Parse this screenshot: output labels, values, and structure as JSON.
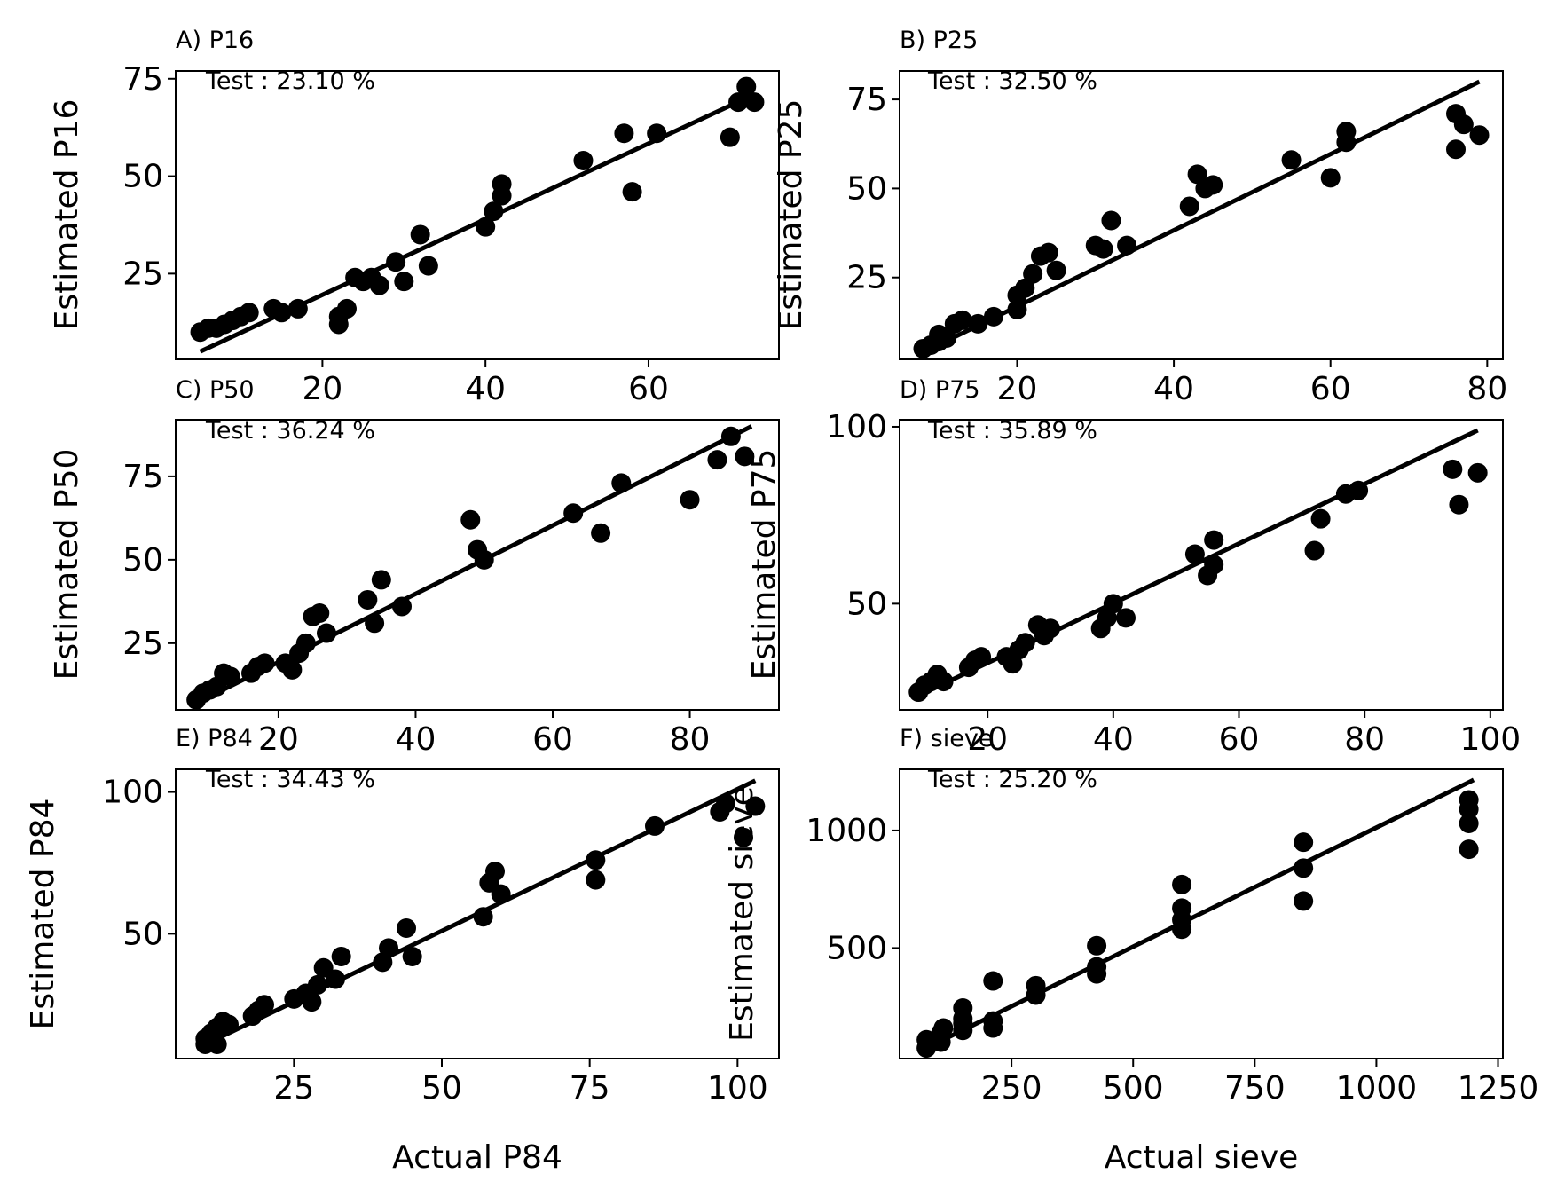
{
  "chart_data": [
    {
      "type": "scatter",
      "title": "A) P16",
      "annotation": "Test : 23.10 %",
      "xlabel": "",
      "ylabel": "Estimated P16",
      "xlim": [
        2,
        76
      ],
      "ylim": [
        3,
        77
      ],
      "xticks": [
        20,
        40,
        60
      ],
      "yticks": [
        25,
        50,
        75
      ],
      "grid": false,
      "fit_line": {
        "x": [
          5,
          73
        ],
        "y": [
          5,
          71
        ]
      },
      "points": [
        [
          5,
          10
        ],
        [
          6,
          11
        ],
        [
          7,
          11
        ],
        [
          8,
          12
        ],
        [
          9,
          13
        ],
        [
          10,
          14
        ],
        [
          11,
          15
        ],
        [
          14,
          16
        ],
        [
          15,
          15
        ],
        [
          17,
          16
        ],
        [
          22,
          14
        ],
        [
          22,
          12
        ],
        [
          23,
          16
        ],
        [
          24,
          24
        ],
        [
          25,
          23
        ],
        [
          26,
          24
        ],
        [
          27,
          22
        ],
        [
          29,
          28
        ],
        [
          30,
          23
        ],
        [
          32,
          35
        ],
        [
          33,
          27
        ],
        [
          40,
          37
        ],
        [
          41,
          41
        ],
        [
          42,
          45
        ],
        [
          42,
          48
        ],
        [
          52,
          54
        ],
        [
          57,
          61
        ],
        [
          58,
          46
        ],
        [
          61,
          61
        ],
        [
          70,
          60
        ],
        [
          71,
          69
        ],
        [
          72,
          73
        ],
        [
          73,
          69
        ]
      ]
    },
    {
      "type": "scatter",
      "title": "B) P25",
      "annotation": "Test : 32.50 %",
      "xlabel": "",
      "ylabel": "Estimated P25",
      "xlim": [
        5,
        82
      ],
      "ylim": [
        2,
        83
      ],
      "xticks": [
        20,
        40,
        60,
        80
      ],
      "yticks": [
        25,
        50,
        75
      ],
      "grid": false,
      "fit_line": {
        "x": [
          8,
          79
        ],
        "y": [
          4,
          80
        ]
      },
      "points": [
        [
          8,
          5
        ],
        [
          9,
          6
        ],
        [
          10,
          7
        ],
        [
          10,
          9
        ],
        [
          11,
          8
        ],
        [
          12,
          12
        ],
        [
          13,
          13
        ],
        [
          15,
          12
        ],
        [
          17,
          14
        ],
        [
          20,
          16
        ],
        [
          20,
          20
        ],
        [
          21,
          22
        ],
        [
          22,
          26
        ],
        [
          23,
          31
        ],
        [
          24,
          32
        ],
        [
          25,
          27
        ],
        [
          30,
          34
        ],
        [
          31,
          33
        ],
        [
          32,
          41
        ],
        [
          34,
          34
        ],
        [
          42,
          45
        ],
        [
          43,
          54
        ],
        [
          44,
          50
        ],
        [
          45,
          51
        ],
        [
          55,
          58
        ],
        [
          60,
          53
        ],
        [
          62,
          63
        ],
        [
          62,
          66
        ],
        [
          76,
          71
        ],
        [
          76,
          61
        ],
        [
          77,
          68
        ],
        [
          79,
          65
        ]
      ]
    },
    {
      "type": "scatter",
      "title": "C) P50",
      "annotation": "Test : 36.24 %",
      "xlabel": "",
      "ylabel": "Estimated P50",
      "xlim": [
        5,
        93
      ],
      "ylim": [
        5,
        92
      ],
      "xticks": [
        20,
        40,
        60,
        80
      ],
      "yticks": [
        25,
        50,
        75
      ],
      "grid": false,
      "fit_line": {
        "x": [
          8,
          89
        ],
        "y": [
          7,
          90
        ]
      },
      "points": [
        [
          8,
          8
        ],
        [
          9,
          10
        ],
        [
          10,
          11
        ],
        [
          11,
          12
        ],
        [
          12,
          16
        ],
        [
          13,
          15
        ],
        [
          16,
          16
        ],
        [
          17,
          18
        ],
        [
          18,
          19
        ],
        [
          21,
          19
        ],
        [
          22,
          17
        ],
        [
          23,
          22
        ],
        [
          24,
          25
        ],
        [
          25,
          33
        ],
        [
          26,
          34
        ],
        [
          27,
          28
        ],
        [
          33,
          38
        ],
        [
          34,
          31
        ],
        [
          35,
          44
        ],
        [
          38,
          36
        ],
        [
          48,
          62
        ],
        [
          49,
          53
        ],
        [
          50,
          50
        ],
        [
          63,
          64
        ],
        [
          67,
          58
        ],
        [
          70,
          73
        ],
        [
          80,
          68
        ],
        [
          84,
          80
        ],
        [
          86,
          87
        ],
        [
          88,
          81
        ]
      ]
    },
    {
      "type": "scatter",
      "title": "D) P75",
      "annotation": "Test : 35.89 %",
      "xlabel": "",
      "ylabel": "Estimated P75",
      "xlim": [
        6,
        102
      ],
      "ylim": [
        20,
        102
      ],
      "xticks": [
        20,
        40,
        60,
        80,
        100
      ],
      "yticks": [
        50,
        100
      ],
      "grid": false,
      "fit_line": {
        "x": [
          9,
          98
        ],
        "y": [
          24,
          99
        ]
      },
      "points": [
        [
          9,
          25
        ],
        [
          10,
          27
        ],
        [
          11,
          28
        ],
        [
          12,
          30
        ],
        [
          13,
          28
        ],
        [
          17,
          32
        ],
        [
          18,
          34
        ],
        [
          19,
          35
        ],
        [
          23,
          35
        ],
        [
          24,
          33
        ],
        [
          25,
          37
        ],
        [
          26,
          39
        ],
        [
          28,
          44
        ],
        [
          29,
          41
        ],
        [
          30,
          43
        ],
        [
          38,
          43
        ],
        [
          39,
          46
        ],
        [
          40,
          50
        ],
        [
          42,
          46
        ],
        [
          53,
          64
        ],
        [
          55,
          58
        ],
        [
          56,
          61
        ],
        [
          56,
          68
        ],
        [
          72,
          65
        ],
        [
          73,
          74
        ],
        [
          77,
          81
        ],
        [
          79,
          82
        ],
        [
          94,
          88
        ],
        [
          95,
          78
        ],
        [
          98,
          87
        ]
      ]
    },
    {
      "type": "scatter",
      "title": "E) P84",
      "annotation": "Test : 34.43 %",
      "xlabel": "Actual P84",
      "ylabel": "Estimated P84",
      "xlim": [
        5,
        107
      ],
      "ylim": [
        6,
        108
      ],
      "xticks": [
        25,
        50,
        75,
        100
      ],
      "yticks": [
        50,
        100
      ],
      "grid": false,
      "fit_line": {
        "x": [
          9,
          103
        ],
        "y": [
          10,
          104
        ]
      },
      "points": [
        [
          10,
          11
        ],
        [
          10,
          13
        ],
        [
          11,
          15
        ],
        [
          12,
          11
        ],
        [
          12,
          17
        ],
        [
          13,
          19
        ],
        [
          14,
          18
        ],
        [
          18,
          21
        ],
        [
          19,
          23
        ],
        [
          20,
          25
        ],
        [
          25,
          27
        ],
        [
          27,
          29
        ],
        [
          28,
          26
        ],
        [
          29,
          32
        ],
        [
          30,
          38
        ],
        [
          32,
          34
        ],
        [
          33,
          42
        ],
        [
          40,
          40
        ],
        [
          41,
          45
        ],
        [
          44,
          52
        ],
        [
          45,
          42
        ],
        [
          57,
          56
        ],
        [
          58,
          68
        ],
        [
          59,
          72
        ],
        [
          60,
          64
        ],
        [
          76,
          76
        ],
        [
          76,
          69
        ],
        [
          86,
          88
        ],
        [
          97,
          93
        ],
        [
          98,
          96
        ],
        [
          101,
          84
        ],
        [
          103,
          95
        ]
      ]
    },
    {
      "type": "scatter",
      "title": "F) sieve",
      "annotation": "Test : 25.20 %",
      "xlabel": "Actual sieve",
      "ylabel": "Estimated sieve",
      "xlim": [
        20,
        1260
      ],
      "ylim": [
        30,
        1260
      ],
      "xticks": [
        250,
        500,
        750,
        1000,
        1250
      ],
      "yticks": [
        500,
        1000
      ],
      "grid": false,
      "fit_line": {
        "x": [
          75,
          1200
        ],
        "y": [
          75,
          1215
        ]
      },
      "points": [
        [
          75,
          75
        ],
        [
          75,
          110
        ],
        [
          105,
          100
        ],
        [
          105,
          140
        ],
        [
          110,
          160
        ],
        [
          150,
          150
        ],
        [
          150,
          180
        ],
        [
          150,
          200
        ],
        [
          150,
          245
        ],
        [
          212,
          160
        ],
        [
          212,
          190
        ],
        [
          212,
          360
        ],
        [
          300,
          300
        ],
        [
          300,
          340
        ],
        [
          425,
          390
        ],
        [
          425,
          420
        ],
        [
          425,
          510
        ],
        [
          600,
          580
        ],
        [
          600,
          620
        ],
        [
          600,
          670
        ],
        [
          600,
          770
        ],
        [
          850,
          700
        ],
        [
          850,
          840
        ],
        [
          850,
          950
        ],
        [
          1190,
          920
        ],
        [
          1190,
          1030
        ],
        [
          1190,
          1090
        ],
        [
          1190,
          1130
        ]
      ]
    }
  ]
}
